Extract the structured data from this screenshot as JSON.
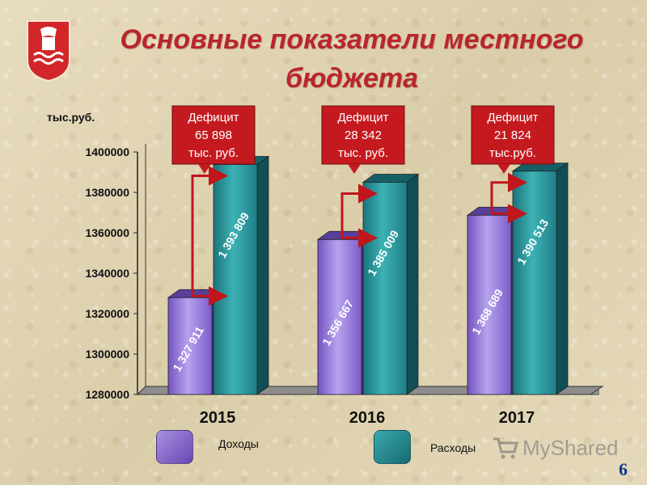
{
  "title": "Основные показатели местного бюджета",
  "y_unit_label": "тыс.руб.",
  "legend": {
    "income": "Доходы",
    "expense": "Расходы"
  },
  "watermark": "MyShared",
  "page_number": "6",
  "colors": {
    "title": "#b8262c",
    "income": "#8a6fd1",
    "expense": "#23878d",
    "arrow": "#c0161c",
    "callout": "#c41a1f"
  },
  "chart_data": {
    "type": "bar",
    "title": "",
    "xlabel": "",
    "ylabel": "тыс.руб.",
    "ylim": [
      1280000,
      1400000
    ],
    "yticks": [
      1280000,
      1300000,
      1320000,
      1340000,
      1360000,
      1380000,
      1400000
    ],
    "ytick_labels": [
      "1280000",
      "1300000",
      "1320000",
      "1340000",
      "1360000",
      "1380000",
      "1400000"
    ],
    "categories": [
      "2015",
      "2016",
      "2017"
    ],
    "series": [
      {
        "name": "Доходы",
        "values": [
          1327911,
          1356667,
          1368689
        ],
        "labels": [
          "1 327 911",
          "1 356 667",
          "1 368 689"
        ]
      },
      {
        "name": "Расходы",
        "values": [
          1393809,
          1385009,
          1390513
        ],
        "labels": [
          "1 393 809",
          "1 385 009",
          "1 390 513"
        ]
      }
    ],
    "annotations": [
      {
        "lines": [
          "Дефицит",
          "65 898",
          "тыс. руб."
        ]
      },
      {
        "lines": [
          "Дефицит",
          "28 342",
          "тыс. руб."
        ]
      },
      {
        "lines": [
          "Дефицит",
          "21 824",
          "тыс.руб."
        ]
      }
    ],
    "legend_position": "bottom",
    "grid": false
  }
}
